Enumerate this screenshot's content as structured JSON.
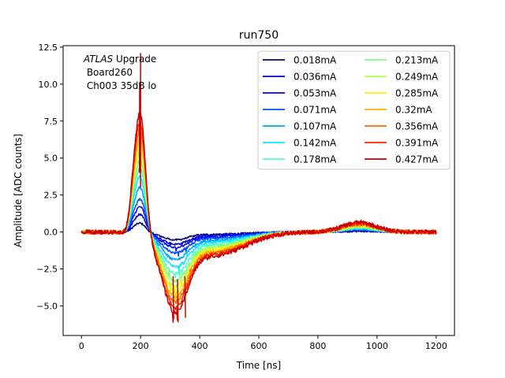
{
  "chart_data": {
    "type": "line",
    "title": "run750",
    "xlabel": "Time [ns]",
    "ylabel": "Amplitude [ADC counts]",
    "xlim": [
      -62,
      1262
    ],
    "ylim": [
      -7.0,
      12.6
    ],
    "xticks": [
      0,
      200,
      400,
      600,
      800,
      1000,
      1200
    ],
    "yticks": [
      -5.0,
      -2.5,
      0.0,
      2.5,
      5.0,
      7.5,
      10.0,
      12.5
    ],
    "xtick_labels": [
      "0",
      "200",
      "400",
      "600",
      "800",
      "1000",
      "1200"
    ],
    "ytick_labels": [
      "−5.0",
      "−2.5",
      "0.0",
      "2.5",
      "5.0",
      "7.5",
      "10.0",
      "12.5"
    ],
    "grid": false,
    "legend_position": "top-right",
    "legend_columns": 2,
    "annotation": {
      "italic": "ATLAS",
      "rest": " Upgrade",
      "line2": " Board260",
      "line3": " Ch003 35dB lo"
    },
    "x_range": [
      0,
      1200
    ],
    "pulse_shape": {
      "peak_time_ns": 200,
      "undershoot_time_ns": 315,
      "secondary_bump_time_ns": 940
    },
    "series": [
      {
        "name": "0.018mA",
        "color": "#00007f",
        "peak": 0.6,
        "undershoot": -0.45,
        "bump": 0.05
      },
      {
        "name": "0.036mA",
        "color": "#0000c8",
        "peak": 1.2,
        "undershoot": -0.7,
        "bump": 0.1
      },
      {
        "name": "0.053mA",
        "color": "#0000ff",
        "peak": 1.7,
        "undershoot": -0.9,
        "bump": 0.12
      },
      {
        "name": "0.071mA",
        "color": "#0050ff",
        "peak": 2.2,
        "undershoot": -1.2,
        "bump": 0.15
      },
      {
        "name": "0.107mA",
        "color": "#00a0ff",
        "peak": 3.0,
        "undershoot": -1.6,
        "bump": 0.2
      },
      {
        "name": "0.142mA",
        "color": "#10e4ff",
        "peak": 3.7,
        "undershoot": -2.0,
        "bump": 0.25
      },
      {
        "name": "0.178mA",
        "color": "#4dffc9",
        "peak": 4.3,
        "undershoot": -2.4,
        "bump": 0.3
      },
      {
        "name": "0.213mA",
        "color": "#7dff80",
        "peak": 4.9,
        "undershoot": -2.8,
        "bump": 0.35
      },
      {
        "name": "0.249mA",
        "color": "#b3ff49",
        "peak": 5.4,
        "undershoot": -3.1,
        "bump": 0.4
      },
      {
        "name": "0.285mA",
        "color": "#f5f500",
        "peak": 5.9,
        "undershoot": -3.4,
        "bump": 0.45
      },
      {
        "name": "0.32mA",
        "color": "#ffb000",
        "peak": 6.4,
        "undershoot": -3.7,
        "bump": 0.5
      },
      {
        "name": "0.356mA",
        "color": "#ff6c00",
        "peak": 6.9,
        "undershoot": -4.0,
        "bump": 0.55
      },
      {
        "name": "0.391mA",
        "color": "#ff2000",
        "peak": 7.4,
        "undershoot": -4.3,
        "bump": 0.6
      },
      {
        "name": "0.427mA",
        "color": "#c80000",
        "peak": 8.0,
        "undershoot": -4.6,
        "bump": 0.65
      }
    ]
  }
}
